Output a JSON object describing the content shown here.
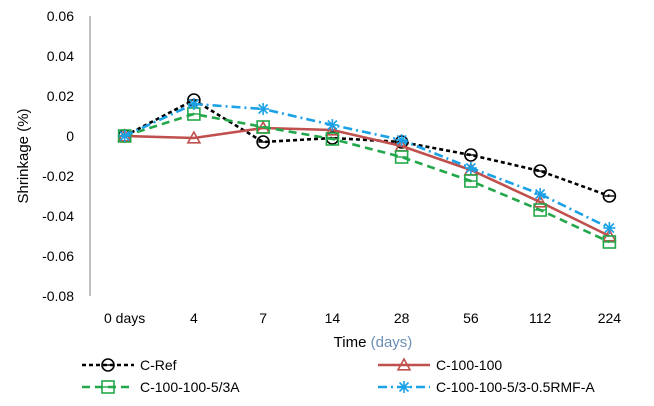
{
  "chart_data": {
    "type": "line",
    "categories": [
      "0 days",
      "4",
      "7",
      "14",
      "28",
      "56",
      "112",
      "224"
    ],
    "ylabel": "Shrinkage (%)",
    "xlabel": "Time",
    "xlabel_unit": "(days)",
    "ylim": [
      -0.08,
      0.06
    ],
    "yticks": [
      0.06,
      0.04,
      0.02,
      0,
      -0.02,
      -0.04,
      -0.06,
      -0.08
    ],
    "ytick_labels": [
      "0.06",
      "0.04",
      "0.02",
      "0",
      "-0.02",
      "-0.04",
      "-0.06",
      "-0.08"
    ],
    "grid": false,
    "legend_position": "bottom",
    "series": [
      {
        "name": "C-Ref",
        "values": [
          0,
          0.018,
          -0.003,
          -0.001,
          -0.003,
          -0.0095,
          -0.0175,
          -0.03
        ],
        "color": "#000000",
        "dash": "4,3",
        "marker": "circle"
      },
      {
        "name": "C-100-100",
        "values": [
          0,
          -0.001,
          0.004,
          0.003,
          -0.005,
          -0.017,
          -0.033,
          -0.05
        ],
        "color": "#c0504d",
        "dash": "",
        "marker": "triangle"
      },
      {
        "name": "C-100-100-5/3A",
        "values": [
          0,
          0.011,
          0.0045,
          -0.0015,
          -0.0105,
          -0.0225,
          -0.037,
          -0.053
        ],
        "color": "#22a84a",
        "dash": "8,5",
        "marker": "square"
      },
      {
        "name": "C-100-100-5/3-0.5RMF-A",
        "values": [
          0,
          0.016,
          0.0135,
          0.0055,
          -0.002,
          -0.016,
          -0.029,
          -0.046
        ],
        "color": "#1aa1e6",
        "dash": "9,4,2,4",
        "marker": "asterisk"
      }
    ]
  }
}
